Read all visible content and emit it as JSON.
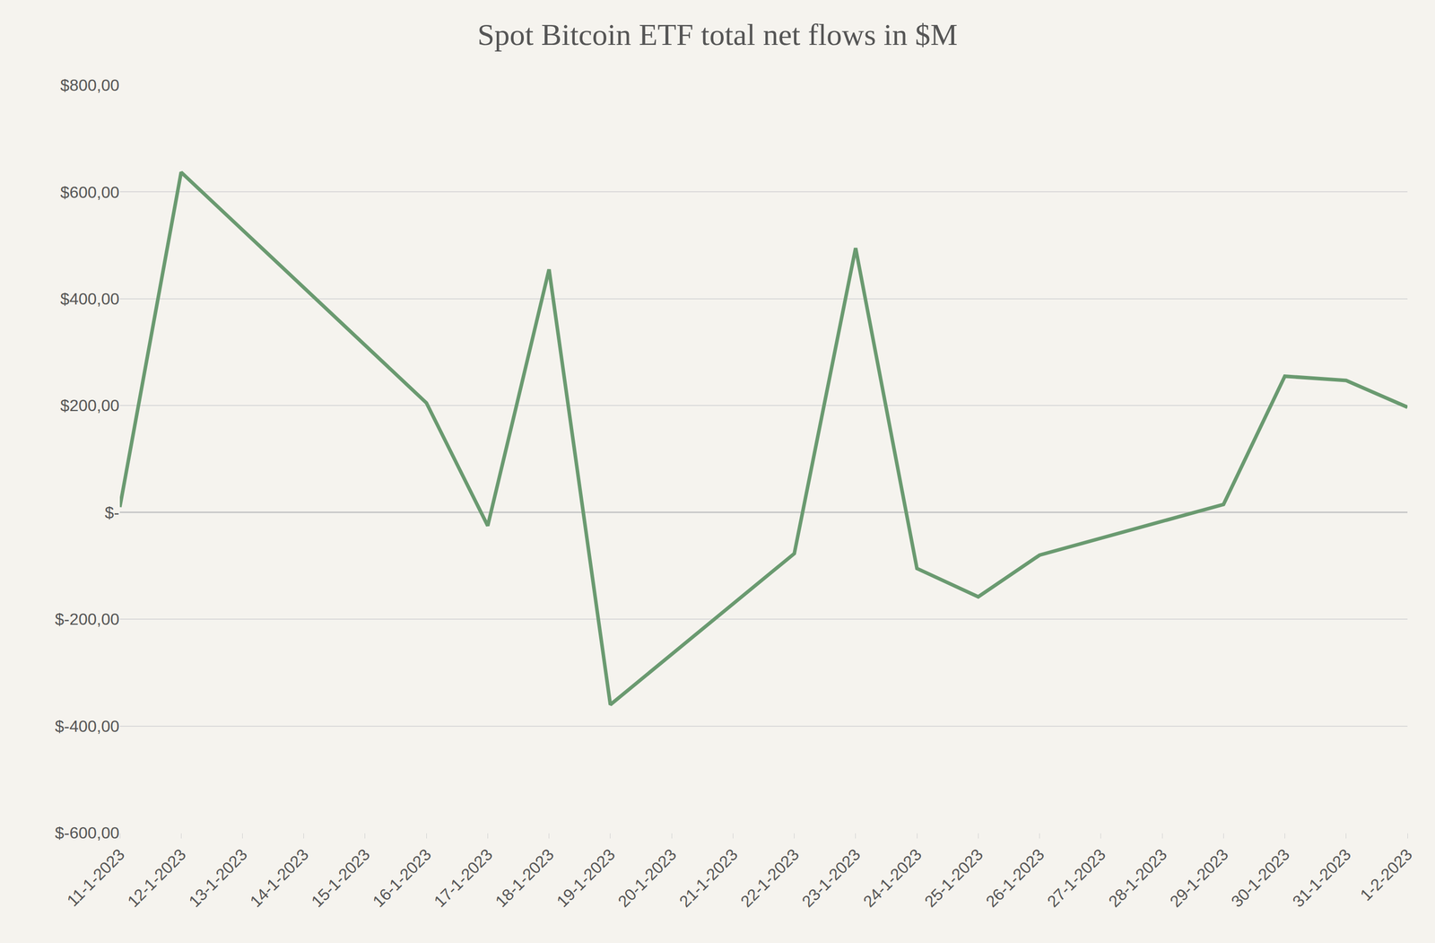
{
  "chart_data": {
    "type": "line",
    "title": "Spot Bitcoin ETF total net flows in $M",
    "x": [
      "11-1-2023",
      "12-1-2023",
      "16-1-2023",
      "17-1-2023",
      "18-1-2023",
      "19-1-2023",
      "22-1-2023",
      "23-1-2023",
      "24-1-2023",
      "25-1-2023",
      "26-1-2023",
      "29-1-2023",
      "30-1-2023",
      "31-1-2023",
      "1-2-2023"
    ],
    "values": [
      10,
      637,
      205,
      -25,
      455,
      -360,
      -77,
      495,
      -105,
      -158,
      -80,
      15,
      255,
      247,
      197
    ],
    "color": "#6a9a70",
    "xlim": [
      "11-1-2023",
      "1-2-2023"
    ],
    "xticks": [
      "11-1-2023",
      "12-1-2023",
      "13-1-2023",
      "14-1-2023",
      "15-1-2023",
      "16-1-2023",
      "17-1-2023",
      "18-1-2023",
      "19-1-2023",
      "20-1-2023",
      "21-1-2023",
      "22-1-2023",
      "23-1-2023",
      "24-1-2023",
      "25-1-2023",
      "26-1-2023",
      "27-1-2023",
      "28-1-2023",
      "29-1-2023",
      "30-1-2023",
      "31-1-2023",
      "1-2-2023"
    ],
    "ylim": [
      -600,
      800
    ],
    "yticks": [
      {
        "value": -600,
        "label": "$-600,00"
      },
      {
        "value": -400,
        "label": "$-400,00"
      },
      {
        "value": -200,
        "label": "$-200,00"
      },
      {
        "value": 0,
        "label": "$-"
      },
      {
        "value": 200,
        "label": "$200,00"
      },
      {
        "value": 400,
        "label": "$400,00"
      },
      {
        "value": 600,
        "label": "$600,00"
      },
      {
        "value": 800,
        "label": "$800,00"
      }
    ],
    "grid": true
  }
}
